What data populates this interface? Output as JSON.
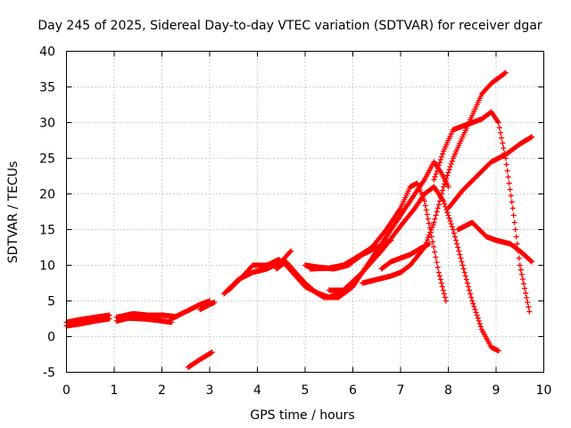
{
  "chart_data": {
    "type": "scatter",
    "title": "Day 245 of 2025, Sidereal Day-to-day VTEC variation (SDTVAR) for receiver dgar",
    "xlabel": "GPS time / hours",
    "ylabel": "SDTVAR / TECUs",
    "xlim": [
      0,
      10
    ],
    "ylim": [
      -5,
      40
    ],
    "xticks": [
      "0",
      "1",
      "2",
      "3",
      "4",
      "5",
      "6",
      "7",
      "8",
      "9",
      "10"
    ],
    "yticks": [
      "-5",
      "0",
      "5",
      "10",
      "15",
      "20",
      "25",
      "30",
      "35",
      "40"
    ],
    "grid": true,
    "marker": "plus",
    "color": "#ff0000",
    "series": [
      {
        "name": "track-1",
        "x": [
          0.0,
          0.3,
          0.6,
          0.9
        ],
        "y": [
          1.5,
          1.8,
          2.2,
          2.5
        ]
      },
      {
        "name": "track-2",
        "x": [
          0.0,
          0.3,
          0.6,
          0.9
        ],
        "y": [
          2.0,
          2.4,
          2.7,
          3.0
        ]
      },
      {
        "name": "track-3",
        "x": [
          1.05,
          1.3,
          1.6,
          1.9,
          2.2
        ],
        "y": [
          2.2,
          2.6,
          2.5,
          2.3,
          2.0
        ]
      },
      {
        "name": "track-4",
        "x": [
          1.05,
          1.4,
          1.7,
          2.0,
          2.3
        ],
        "y": [
          2.7,
          3.2,
          3.0,
          3.0,
          2.8
        ]
      },
      {
        "name": "track-5",
        "x": [
          2.2,
          2.5,
          2.8,
          3.0
        ],
        "y": [
          2.5,
          3.5,
          4.5,
          5.0
        ]
      },
      {
        "name": "track-6",
        "x": [
          2.8,
          3.0,
          3.1
        ],
        "y": [
          3.8,
          4.5,
          4.8
        ]
      },
      {
        "name": "track-7",
        "x": [
          2.55,
          2.8,
          3.05
        ],
        "y": [
          -4.3,
          -3.2,
          -2.2
        ]
      },
      {
        "name": "track-8",
        "x": [
          3.3,
          3.6,
          3.9,
          4.2,
          4.5,
          4.7
        ],
        "y": [
          6.0,
          8.0,
          9.0,
          9.5,
          10.5,
          12.0
        ]
      },
      {
        "name": "track-9",
        "x": [
          3.4,
          3.7,
          3.9,
          4.2,
          4.45,
          4.6,
          4.8,
          5.0,
          5.3,
          5.5,
          5.7,
          5.9
        ],
        "y": [
          6.5,
          8.5,
          10.0,
          10.0,
          10.8,
          10.0,
          8.5,
          7.0,
          6.0,
          5.5,
          6.0,
          6.5
        ]
      },
      {
        "name": "track-10",
        "x": [
          4.4,
          4.6,
          4.8,
          5.0,
          5.2,
          5.4,
          5.7,
          6.0,
          6.3,
          6.6,
          6.9,
          7.1,
          7.3,
          7.5,
          7.7,
          7.85,
          8.0
        ],
        "y": [
          9.5,
          10.5,
          9.0,
          7.5,
          6.3,
          5.5,
          5.5,
          7.0,
          10.0,
          13.0,
          16.0,
          18.0,
          20.0,
          22.0,
          24.5,
          23.0,
          21.0
        ]
      },
      {
        "name": "track-11",
        "x": [
          5.5,
          5.8,
          6.2,
          6.6,
          7.0,
          7.3,
          7.5,
          7.7,
          7.9,
          8.1,
          8.3,
          8.5,
          8.7,
          8.9,
          9.05
        ],
        "y": [
          6.5,
          6.5,
          9.0,
          12.0,
          15.5,
          18.0,
          20.0,
          21.0,
          19.0,
          15.0,
          10.0,
          5.0,
          1.0,
          -1.5,
          -2.0
        ]
      },
      {
        "name": "track-12",
        "x": [
          5.0,
          5.3,
          5.6,
          5.9,
          6.2,
          6.5,
          6.8
        ],
        "y": [
          10.0,
          9.7,
          9.5,
          10.0,
          11.5,
          12.5,
          13.5
        ]
      },
      {
        "name": "track-13",
        "x": [
          5.1,
          5.5,
          5.8,
          6.1,
          6.4,
          6.7,
          7.0,
          7.2,
          7.35,
          7.5,
          7.65,
          7.8,
          7.95
        ],
        "y": [
          9.5,
          9.6,
          10.0,
          11.2,
          12.5,
          15.0,
          18.0,
          21.0,
          21.5,
          19.0,
          14.0,
          9.0,
          5.0
        ]
      },
      {
        "name": "track-14",
        "x": [
          6.2,
          6.5,
          6.8,
          7.0,
          7.2,
          7.5,
          7.7,
          7.9,
          8.1,
          8.3,
          8.5,
          8.7,
          8.9,
          9.1,
          9.2
        ],
        "y": [
          7.5,
          8.0,
          8.5,
          9.0,
          10.0,
          12.5,
          16.0,
          21.0,
          25.0,
          28.0,
          31.0,
          34.0,
          35.5,
          36.5,
          37.0
        ]
      },
      {
        "name": "track-15",
        "x": [
          6.6,
          6.8,
          7.0,
          7.2,
          7.4,
          7.6
        ],
        "y": [
          9.5,
          10.5,
          11.0,
          11.5,
          12.3,
          13.0
        ]
      },
      {
        "name": "track-16",
        "x": [
          7.7,
          7.9,
          8.1,
          8.3,
          8.5,
          8.7,
          8.9,
          9.05,
          9.2,
          9.35,
          9.5,
          9.7
        ],
        "y": [
          22.0,
          26.0,
          29.0,
          29.5,
          30.0,
          30.5,
          31.5,
          30.0,
          25.0,
          18.0,
          10.0,
          3.5
        ]
      },
      {
        "name": "track-17",
        "x": [
          8.0,
          8.3,
          8.6,
          8.9,
          9.2,
          9.5,
          9.75
        ],
        "y": [
          18.0,
          20.5,
          22.5,
          24.5,
          25.5,
          27.0,
          28.0
        ]
      },
      {
        "name": "track-18",
        "x": [
          8.2,
          8.5,
          8.8,
          9.0,
          9.3,
          9.5,
          9.75
        ],
        "y": [
          15.0,
          16.0,
          14.0,
          13.5,
          13.0,
          12.0,
          10.5
        ]
      }
    ]
  }
}
